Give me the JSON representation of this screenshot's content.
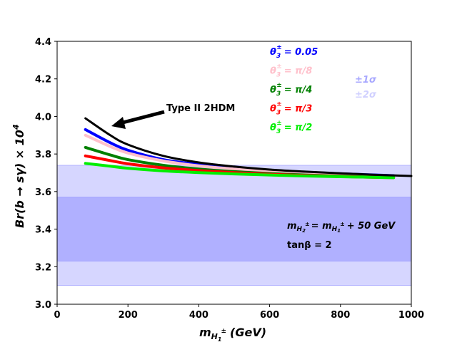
{
  "chart_data": {
    "type": "line",
    "xlabel_main": "m",
    "xlabel_sub": "H",
    "xlabel_subsub": "1",
    "xlabel_sup": "±",
    "xlabel_unit": "(GeV)",
    "ylabel": "Br(b → sγ) × 10",
    "ylabel_exp": "4",
    "xlim": [
      0,
      1000
    ],
    "ylim": [
      3.0,
      4.4
    ],
    "xticks": [
      "0",
      "200",
      "400",
      "600",
      "800",
      "1000"
    ],
    "yticks": [
      "3.0",
      "3.2",
      "3.4",
      "3.6",
      "3.8",
      "4.0",
      "4.2",
      "4.4"
    ],
    "bands": [
      {
        "name": "±2σ",
        "ymin": 3.1,
        "ymax": 3.74,
        "color": "#d6d6ff"
      },
      {
        "name": "±1σ",
        "ymin": 3.23,
        "ymax": 3.57,
        "color": "#b0b0ff"
      }
    ],
    "series": [
      {
        "name": "0.05",
        "color": "#0000ff",
        "x": [
          80,
          150,
          200,
          300,
          400,
          500,
          600,
          700,
          800,
          900,
          950
        ],
        "y": [
          3.93,
          3.86,
          3.82,
          3.77,
          3.745,
          3.727,
          3.713,
          3.703,
          3.695,
          3.688,
          3.685
        ]
      },
      {
        "name": "π/8",
        "color": "#ffc0cb",
        "x": [
          80,
          150,
          200,
          300,
          400,
          500,
          600,
          700,
          800,
          900,
          950
        ],
        "y": [
          3.9,
          3.84,
          3.805,
          3.763,
          3.737,
          3.72,
          3.708,
          3.699,
          3.692,
          3.686,
          3.683
        ]
      },
      {
        "name": "π/4",
        "color": "#008000",
        "x": [
          80,
          150,
          200,
          300,
          400,
          500,
          600,
          700,
          800,
          900,
          950
        ],
        "y": [
          3.835,
          3.795,
          3.77,
          3.74,
          3.72,
          3.706,
          3.696,
          3.688,
          3.682,
          3.677,
          3.675
        ]
      },
      {
        "name": "π/3",
        "color": "#ff0000",
        "x": [
          80,
          150,
          200,
          300,
          400,
          500,
          600,
          700,
          800,
          900,
          950
        ],
        "y": [
          3.79,
          3.765,
          3.748,
          3.726,
          3.712,
          3.701,
          3.692,
          3.686,
          3.68,
          3.676,
          3.674
        ]
      },
      {
        "name": "π/2",
        "color": "#00ee00",
        "x": [
          80,
          150,
          200,
          300,
          400,
          500,
          600,
          700,
          800,
          900,
          950
        ],
        "y": [
          3.75,
          3.735,
          3.724,
          3.71,
          3.701,
          3.694,
          3.688,
          3.683,
          3.679,
          3.676,
          3.674
        ]
      },
      {
        "name": "Type II 2HDM",
        "color": "#000000",
        "x": [
          80,
          150,
          200,
          300,
          400,
          500,
          600,
          700,
          800,
          900,
          1000
        ],
        "y": [
          3.99,
          3.9,
          3.85,
          3.79,
          3.755,
          3.733,
          3.717,
          3.706,
          3.697,
          3.689,
          3.683
        ]
      }
    ],
    "legend": {
      "prefix": "θ",
      "prefix_sub": "3",
      "prefix_sup": "±",
      "items": [
        {
          "label": "= 0.05",
          "color": "#0000ff"
        },
        {
          "label": "= π/8",
          "color": "#ffc0cb"
        },
        {
          "label": "= π/4",
          "color": "#008000"
        },
        {
          "label": "= π/3",
          "color": "#ff0000"
        },
        {
          "label": "= π/2",
          "color": "#00ee00"
        }
      ],
      "placement": "top-center"
    },
    "sigma_legend": {
      "one": "±1σ",
      "two": "±2σ",
      "one_color": "#a8a8ff",
      "two_color": "#d0d0ff"
    },
    "annotation_arrow": "Type II 2HDM",
    "annotation_mass": {
      "lhs": "m",
      "lhs_sub": "H",
      "lhs_subsub": "2",
      "lhs_sup": "±",
      "eq": "= m",
      "rhs_sub": "H",
      "rhs_subsub": "1",
      "rhs_sup": "±",
      "rest": "+ 50 GeV"
    },
    "annotation_tanb": "tanβ = 2"
  }
}
